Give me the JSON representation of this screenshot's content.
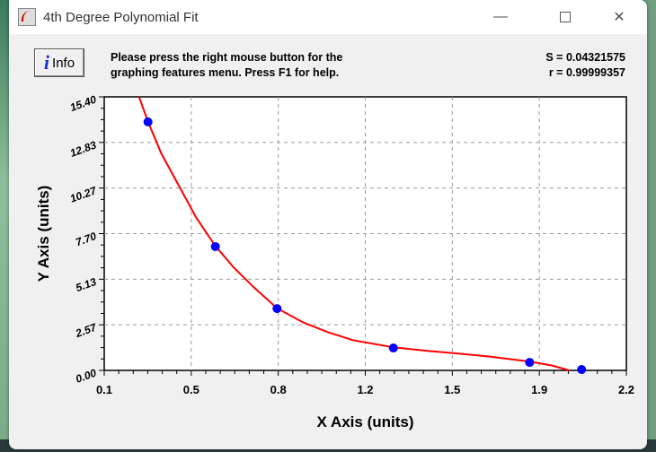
{
  "window": {
    "title": "4th Degree Polynomial Fit",
    "controls": {
      "minimize": "minimize-icon",
      "maximize": "maximize-icon",
      "close": "close-icon"
    }
  },
  "toolbar": {
    "info_label": "Info",
    "message_line1": "Please press the right mouse button for the",
    "message_line2": "graphing features menu.  Press F1 for help.",
    "s_stat": "S = 0.04321575",
    "r_stat": "r = 0.99999357"
  },
  "colors": {
    "curve": "#ff0000",
    "points": "#0000ff",
    "grid": "#999999"
  },
  "chart_data": {
    "type": "scatter",
    "title": "",
    "xlabel": "X Axis (units)",
    "ylabel": "Y Axis (units)",
    "xlim": [
      0.1,
      2.2
    ],
    "ylim": [
      0.0,
      15.4
    ],
    "x_ticks": [
      "0.1",
      "0.5",
      "0.8",
      "1.2",
      "1.5",
      "1.9",
      "2.2"
    ],
    "y_ticks": [
      "0.00",
      "2.57",
      "5.13",
      "7.70",
      "10.27",
      "12.83",
      "15.40"
    ],
    "grid": true,
    "points": {
      "x": [
        0.276,
        0.547,
        0.795,
        1.263,
        1.811,
        2.02
      ],
      "y": [
        13.99,
        6.97,
        3.48,
        1.26,
        0.45,
        0.05
      ]
    },
    "fit_curve": {
      "name": "",
      "x": [
        0.24,
        0.276,
        0.33,
        0.4,
        0.47,
        0.547,
        0.62,
        0.7,
        0.795,
        0.9,
        1.0,
        1.1,
        1.263,
        1.4,
        1.5,
        1.65,
        1.811,
        1.9,
        1.97
      ],
      "y": [
        15.4,
        14.0,
        12.2,
        10.4,
        8.6,
        7.0,
        5.8,
        4.7,
        3.5,
        2.7,
        2.15,
        1.7,
        1.3,
        1.1,
        0.98,
        0.78,
        0.5,
        0.28,
        0.0
      ]
    }
  }
}
